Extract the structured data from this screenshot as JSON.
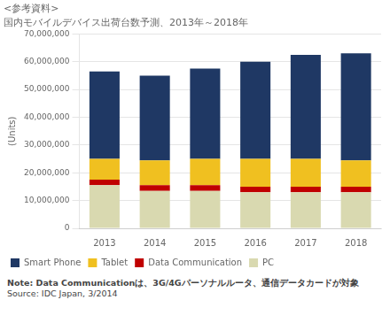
{
  "chart_data": {
    "type": "bar",
    "stacked": true,
    "title": "<参考資料>",
    "subtitle": "国内モバイルデバイス出荷台数予測、2013年～2018年",
    "y_label": "(Units)",
    "categories": [
      "2013",
      "2014",
      "2015",
      "2016",
      "2017",
      "2018"
    ],
    "series": [
      {
        "name": "PC",
        "color": "#D9D9B0",
        "values": [
          15500000,
          13500000,
          13500000,
          13000000,
          13000000,
          13000000
        ]
      },
      {
        "name": "Data Communication",
        "color": "#C00000",
        "values": [
          2000000,
          2000000,
          2000000,
          2000000,
          2000000,
          2000000
        ]
      },
      {
        "name": "Tablet",
        "color": "#F0C020",
        "values": [
          7500000,
          9000000,
          9500000,
          10000000,
          10000000,
          9500000
        ]
      },
      {
        "name": "Smart Phone",
        "color": "#1F3864",
        "values": [
          31500000,
          30500000,
          32500000,
          35000000,
          37500000,
          38500000
        ]
      }
    ],
    "ylim": [
      0,
      70000000
    ],
    "yticks": [
      0,
      {
        "value": 10000000,
        "label": "10,000,000"
      },
      {
        "value": 20000000,
        "label": "20,000,000"
      },
      {
        "value": 30000000,
        "label": "30,000,000"
      },
      {
        "value": 40000000,
        "label": "40,000,000"
      },
      {
        "value": 50000000,
        "label": "50,000,000"
      },
      {
        "value": 60000000,
        "label": "60,000,000"
      },
      {
        "value": 70000000,
        "label": "70,000,000"
      }
    ],
    "grid": true,
    "legend": "bottom",
    "annotations": [
      "Note: Data Communicationは、3G/4Gパーソナルルータ、通信データカードが対象",
      "Source: IDC Japan, 3/2014"
    ]
  }
}
